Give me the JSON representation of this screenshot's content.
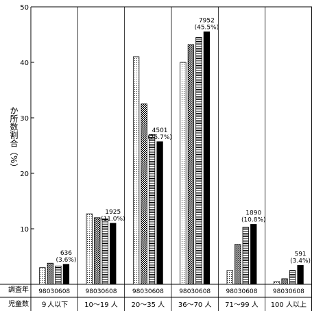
{
  "chart_data": {
    "type": "bar",
    "ylabel": "か所数割合（%）",
    "ylim": [
      0,
      50
    ],
    "yticks": [
      10,
      20,
      30,
      40,
      50
    ],
    "row_labels": {
      "years": "調査年",
      "children": "児童数"
    },
    "series": [
      {
        "name": "98",
        "values": [
          3.0,
          12.7,
          41.0,
          40.0,
          2.5,
          0.5
        ]
      },
      {
        "name": "03",
        "values": [
          3.8,
          12.0,
          32.5,
          43.2,
          7.2,
          1.0
        ]
      },
      {
        "name": "06",
        "values": [
          3.3,
          11.8,
          27.0,
          44.5,
          10.3,
          2.5
        ]
      },
      {
        "name": "08",
        "values": [
          3.6,
          11.0,
          25.7,
          45.5,
          10.8,
          3.4
        ]
      }
    ],
    "categories": [
      "９人以下",
      "10～19 人",
      "20～35 人",
      "36～70 人",
      "71～99 人",
      "100 人以上"
    ],
    "year_labels": [
      "98",
      "03",
      "06",
      "08"
    ],
    "annotations": [
      {
        "count": "636",
        "pct": "(3.6%)"
      },
      {
        "count": "1925",
        "pct": "(11.0%)"
      },
      {
        "count": "4501",
        "pct": "(25.7%)"
      },
      {
        "count": "7952",
        "pct": "(45.5%)"
      },
      {
        "count": "1890",
        "pct": "(10.8%)"
      },
      {
        "count": "591",
        "pct": "(3.4%)"
      }
    ],
    "grid": false
  }
}
